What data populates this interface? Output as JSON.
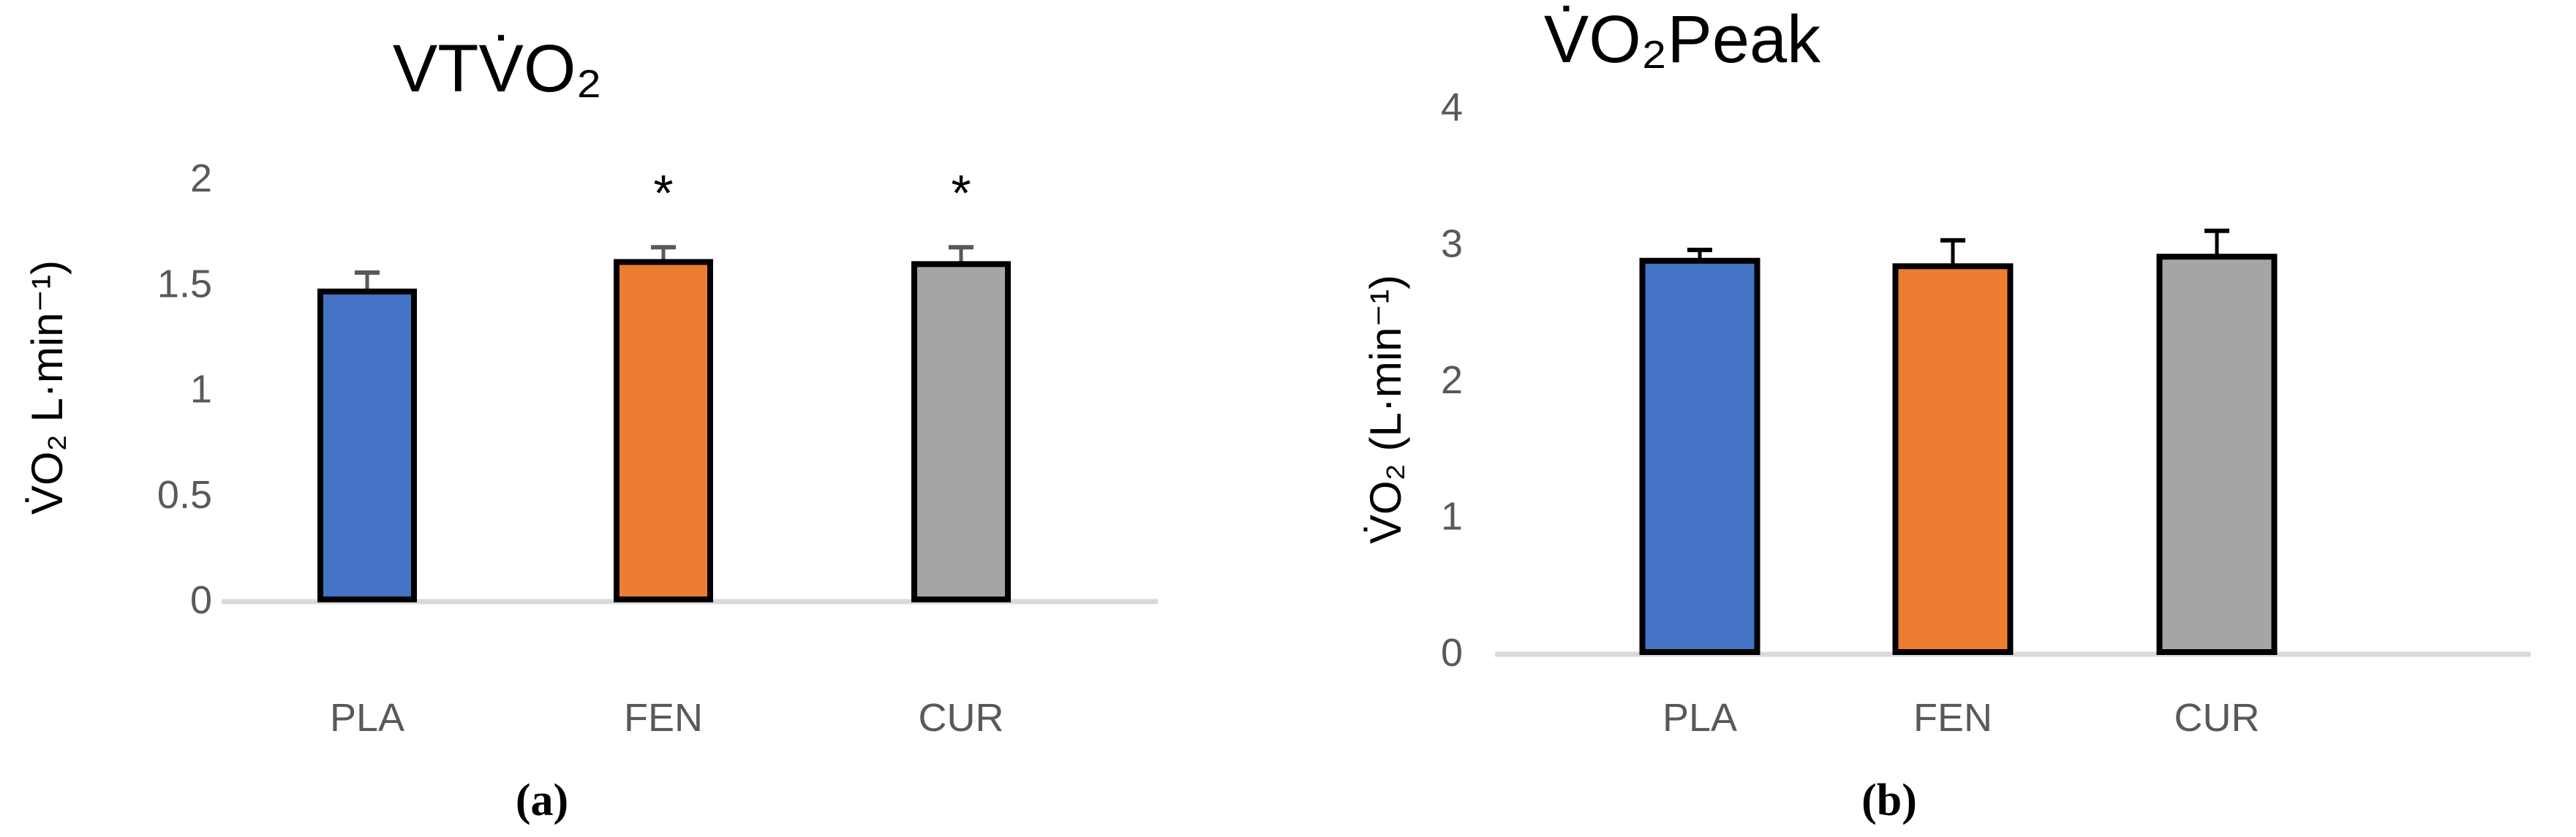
{
  "chart_data": [
    {
      "type": "bar",
      "title": "VTV̇O₂",
      "ylabel": "V̇O₂  L·min⁻¹)",
      "panel_label": "(a)",
      "categories": [
        "PLA",
        "FEN",
        "CUR"
      ],
      "values": [
        1.46,
        1.6,
        1.59
      ],
      "error_upper": [
        1.55,
        1.67,
        1.67
      ],
      "annotations": [
        "",
        "*",
        "*"
      ],
      "colors": [
        "#4472C4",
        "#ED7D31",
        "#A5A5A5"
      ],
      "ylim": [
        0,
        2
      ],
      "yticks": [
        "0",
        "0.5",
        "1",
        "1.5",
        "2"
      ],
      "grid": false,
      "legend": "none"
    },
    {
      "type": "bar",
      "title": "V̇O₂Peak",
      "ylabel": "V̇O₂ (L·min⁻¹)",
      "panel_label": "(b)",
      "categories": [
        "PLA",
        "FEN",
        "CUR"
      ],
      "values": [
        2.87,
        2.83,
        2.9
      ],
      "error_upper": [
        2.95,
        3.02,
        3.09
      ],
      "annotations": [
        "",
        "",
        ""
      ],
      "colors": [
        "#4472C4",
        "#ED7D31",
        "#A5A5A5"
      ],
      "ylim": [
        0,
        4
      ],
      "yticks": [
        "0",
        "1",
        "2",
        "3",
        "4"
      ],
      "grid": false,
      "legend": "none"
    }
  ]
}
